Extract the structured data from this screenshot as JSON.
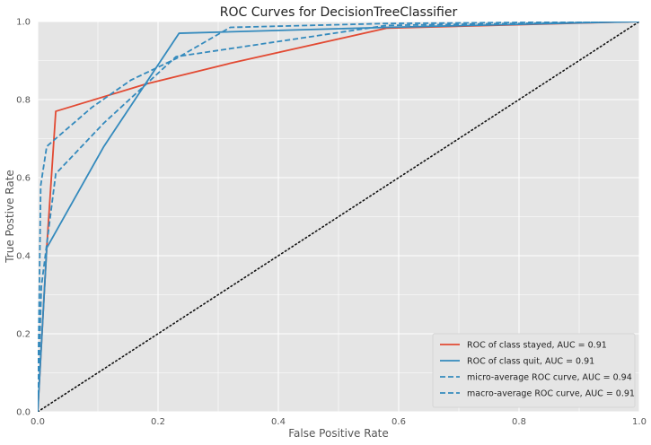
{
  "chart_data": {
    "type": "line",
    "title": "ROC Curves for DecisionTreeClassifier",
    "xlabel": "False Positive Rate",
    "ylabel": "True Postive Rate",
    "xlim": [
      0,
      1
    ],
    "ylim": [
      0,
      1
    ],
    "x_ticks": [
      "0.0",
      "0.2",
      "0.4",
      "0.6",
      "0.8",
      "1.0"
    ],
    "y_ticks": [
      "0.0",
      "0.2",
      "0.4",
      "0.6",
      "0.8",
      "1.0"
    ],
    "grid": true,
    "legend_position": "lower-right",
    "series": [
      {
        "name": "ROC of class stayed, AUC = 0.91",
        "color": "#e24a33",
        "dash": "solid",
        "points": [
          [
            0,
            0
          ],
          [
            0.015,
            0.42
          ],
          [
            0.03,
            0.77
          ],
          [
            0.18,
            0.84
          ],
          [
            0.32,
            0.893
          ],
          [
            0.58,
            0.983
          ],
          [
            1,
            1
          ]
        ]
      },
      {
        "name": "ROC of class quit, AUC = 0.91",
        "color": "#348abd",
        "dash": "solid",
        "points": [
          [
            0,
            0
          ],
          [
            0.015,
            0.42
          ],
          [
            0.11,
            0.68
          ],
          [
            0.235,
            0.97
          ],
          [
            0.58,
            0.985
          ],
          [
            1,
            1
          ]
        ]
      },
      {
        "name": "micro-average ROC curve, AUC = 0.94",
        "color": "#348abd",
        "dash": "dashed",
        "points": [
          [
            0,
            0
          ],
          [
            0.005,
            0.58
          ],
          [
            0.015,
            0.68
          ],
          [
            0.03,
            0.7
          ],
          [
            0.09,
            0.78
          ],
          [
            0.155,
            0.85
          ],
          [
            0.23,
            0.905
          ],
          [
            0.32,
            0.985
          ],
          [
            0.58,
            0.995
          ],
          [
            1,
            1
          ]
        ]
      },
      {
        "name": "macro-average ROC curve, AUC = 0.91",
        "color": "#348abd",
        "dash": "dashed",
        "points": [
          [
            0,
            0
          ],
          [
            0.006,
            0.32
          ],
          [
            0.03,
            0.61
          ],
          [
            0.11,
            0.74
          ],
          [
            0.23,
            0.91
          ],
          [
            0.58,
            0.99
          ],
          [
            1,
            1
          ]
        ]
      }
    ],
    "reference_line": {
      "color": "#111111",
      "style": "dotted",
      "points": [
        [
          0,
          0
        ],
        [
          1,
          1
        ]
      ]
    }
  }
}
